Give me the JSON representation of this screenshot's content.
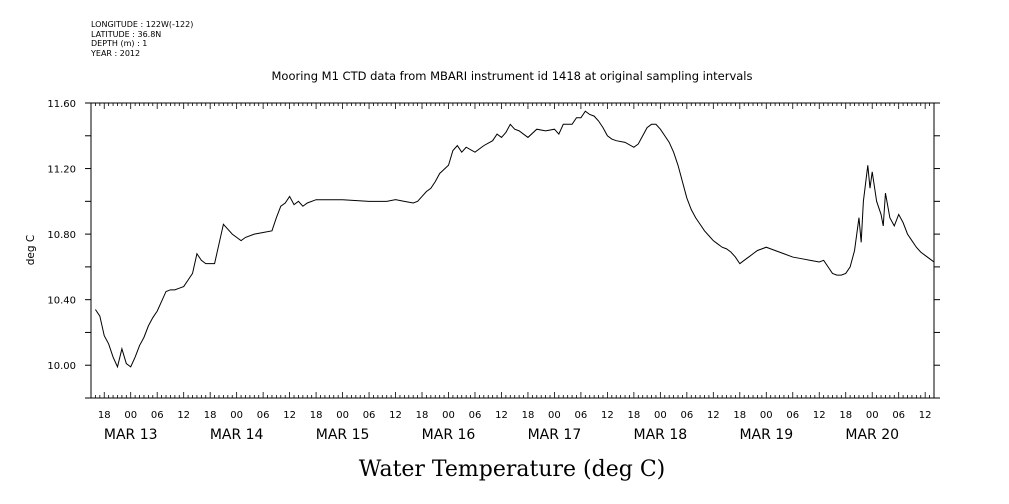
{
  "metadata": {
    "longitude": "LONGITUDE : 122W(-122)",
    "latitude": "LATITUDE : 36.8N",
    "depth": "DEPTH (m) : 1",
    "year": "YEAR : 2012"
  },
  "chart_data": {
    "type": "line",
    "title": "Mooring M1 CTD data from MBARI instrument id 1418 at original sampling intervals",
    "xlabel": "Water Temperature (deg C)",
    "ylabel": "deg C",
    "ylim": [
      9.8,
      11.6
    ],
    "xlim": [
      "2012-03-12 15:00",
      "2012-03-20 14:00"
    ],
    "yticks": [
      "10.00",
      "10.40",
      "10.80",
      "11.20",
      "11.60"
    ],
    "hour_tick_labels": [
      "18",
      "00",
      "06",
      "12",
      "18",
      "00",
      "06",
      "12",
      "18",
      "00",
      "06",
      "12",
      "18",
      "00",
      "06",
      "12",
      "18",
      "00",
      "06",
      "12",
      "18",
      "00",
      "06",
      "12",
      "18",
      "00",
      "06",
      "12",
      "18",
      "00",
      "06",
      "12"
    ],
    "date_labels": [
      "MAR 13",
      "MAR 14",
      "MAR 15",
      "MAR 16",
      "MAR 17",
      "MAR 18",
      "MAR 19",
      "MAR 20"
    ],
    "grid": false,
    "legend": "none",
    "line_color": "#000000",
    "series": [
      {
        "values": [
          [
            "2012-03-12 16:00",
            10.34
          ],
          [
            "2012-03-12 17:00",
            10.3
          ],
          [
            "2012-03-12 18:00",
            10.18
          ],
          [
            "2012-03-12 19:00",
            10.13
          ],
          [
            "2012-03-12 20:00",
            10.05
          ],
          [
            "2012-03-12 21:00",
            9.99
          ],
          [
            "2012-03-12 22:00",
            10.1
          ],
          [
            "2012-03-12 23:00",
            10.01
          ],
          [
            "2012-03-13 00:00",
            9.99
          ],
          [
            "2012-03-13 01:00",
            10.05
          ],
          [
            "2012-03-13 02:00",
            10.12
          ],
          [
            "2012-03-13 03:00",
            10.17
          ],
          [
            "2012-03-13 04:00",
            10.24
          ],
          [
            "2012-03-13 05:00",
            10.29
          ],
          [
            "2012-03-13 06:00",
            10.33
          ],
          [
            "2012-03-13 07:00",
            10.39
          ],
          [
            "2012-03-13 08:00",
            10.45
          ],
          [
            "2012-03-13 09:00",
            10.46
          ],
          [
            "2012-03-13 10:00",
            10.46
          ],
          [
            "2012-03-13 11:00",
            10.47
          ],
          [
            "2012-03-13 12:00",
            10.48
          ],
          [
            "2012-03-13 13:00",
            10.52
          ],
          [
            "2012-03-13 14:00",
            10.56
          ],
          [
            "2012-03-13 15:00",
            10.68
          ],
          [
            "2012-03-13 16:00",
            10.64
          ],
          [
            "2012-03-13 17:00",
            10.62
          ],
          [
            "2012-03-13 18:00",
            10.62
          ],
          [
            "2012-03-13 19:00",
            10.62
          ],
          [
            "2012-03-13 20:00",
            10.74
          ],
          [
            "2012-03-13 21:00",
            10.86
          ],
          [
            "2012-03-13 22:00",
            10.83
          ],
          [
            "2012-03-13 23:00",
            10.8
          ],
          [
            "2012-03-14 00:00",
            10.78
          ],
          [
            "2012-03-14 01:00",
            10.76
          ],
          [
            "2012-03-14 02:00",
            10.78
          ],
          [
            "2012-03-14 04:00",
            10.8
          ],
          [
            "2012-03-14 06:00",
            10.81
          ],
          [
            "2012-03-14 08:00",
            10.82
          ],
          [
            "2012-03-14 09:00",
            10.9
          ],
          [
            "2012-03-14 10:00",
            10.97
          ],
          [
            "2012-03-14 11:00",
            10.99
          ],
          [
            "2012-03-14 12:00",
            11.03
          ],
          [
            "2012-03-14 13:00",
            10.98
          ],
          [
            "2012-03-14 14:00",
            11.0
          ],
          [
            "2012-03-14 15:00",
            10.97
          ],
          [
            "2012-03-14 16:00",
            10.99
          ],
          [
            "2012-03-14 18:00",
            11.01
          ],
          [
            "2012-03-14 20:00",
            11.01
          ],
          [
            "2012-03-15 00:00",
            11.01
          ],
          [
            "2012-03-15 06:00",
            11.0
          ],
          [
            "2012-03-15 10:00",
            11.0
          ],
          [
            "2012-03-15 12:00",
            11.01
          ],
          [
            "2012-03-15 14:00",
            11.0
          ],
          [
            "2012-03-15 16:00",
            10.99
          ],
          [
            "2012-03-15 17:00",
            11.0
          ],
          [
            "2012-03-15 18:00",
            11.03
          ],
          [
            "2012-03-15 19:00",
            11.06
          ],
          [
            "2012-03-15 20:00",
            11.08
          ],
          [
            "2012-03-15 21:00",
            11.12
          ],
          [
            "2012-03-15 22:00",
            11.17
          ],
          [
            "2012-03-16 00:00",
            11.22
          ],
          [
            "2012-03-16 01:00",
            11.31
          ],
          [
            "2012-03-16 02:00",
            11.34
          ],
          [
            "2012-03-16 03:00",
            11.3
          ],
          [
            "2012-03-16 04:00",
            11.33
          ],
          [
            "2012-03-16 06:00",
            11.3
          ],
          [
            "2012-03-16 08:00",
            11.34
          ],
          [
            "2012-03-16 10:00",
            11.37
          ],
          [
            "2012-03-16 11:00",
            11.41
          ],
          [
            "2012-03-16 12:00",
            11.39
          ],
          [
            "2012-03-16 13:00",
            11.42
          ],
          [
            "2012-03-16 14:00",
            11.47
          ],
          [
            "2012-03-16 15:00",
            11.44
          ],
          [
            "2012-03-16 16:00",
            11.43
          ],
          [
            "2012-03-16 18:00",
            11.39
          ],
          [
            "2012-03-16 20:00",
            11.44
          ],
          [
            "2012-03-16 22:00",
            11.43
          ],
          [
            "2012-03-17 00:00",
            11.44
          ],
          [
            "2012-03-17 01:00",
            11.41
          ],
          [
            "2012-03-17 02:00",
            11.47
          ],
          [
            "2012-03-17 04:00",
            11.47
          ],
          [
            "2012-03-17 05:00",
            11.51
          ],
          [
            "2012-03-17 06:00",
            11.51
          ],
          [
            "2012-03-17 07:00",
            11.55
          ],
          [
            "2012-03-17 08:00",
            11.53
          ],
          [
            "2012-03-17 09:00",
            11.52
          ],
          [
            "2012-03-17 10:00",
            11.49
          ],
          [
            "2012-03-17 11:00",
            11.45
          ],
          [
            "2012-03-17 12:00",
            11.4
          ],
          [
            "2012-03-17 13:00",
            11.38
          ],
          [
            "2012-03-17 14:00",
            11.37
          ],
          [
            "2012-03-17 16:00",
            11.36
          ],
          [
            "2012-03-17 18:00",
            11.33
          ],
          [
            "2012-03-17 19:00",
            11.35
          ],
          [
            "2012-03-17 20:00",
            11.4
          ],
          [
            "2012-03-17 21:00",
            11.45
          ],
          [
            "2012-03-17 22:00",
            11.47
          ],
          [
            "2012-03-17 23:00",
            11.47
          ],
          [
            "2012-03-18 00:00",
            11.44
          ],
          [
            "2012-03-18 01:00",
            11.4
          ],
          [
            "2012-03-18 02:00",
            11.36
          ],
          [
            "2012-03-18 03:00",
            11.3
          ],
          [
            "2012-03-18 04:00",
            11.22
          ],
          [
            "2012-03-18 05:00",
            11.12
          ],
          [
            "2012-03-18 06:00",
            11.02
          ],
          [
            "2012-03-18 07:00",
            10.95
          ],
          [
            "2012-03-18 08:00",
            10.9
          ],
          [
            "2012-03-18 09:00",
            10.86
          ],
          [
            "2012-03-18 10:00",
            10.82
          ],
          [
            "2012-03-18 11:00",
            10.79
          ],
          [
            "2012-03-18 12:00",
            10.76
          ],
          [
            "2012-03-18 13:00",
            10.74
          ],
          [
            "2012-03-18 14:00",
            10.72
          ],
          [
            "2012-03-18 15:00",
            10.71
          ],
          [
            "2012-03-18 16:00",
            10.69
          ],
          [
            "2012-03-18 17:00",
            10.66
          ],
          [
            "2012-03-18 18:00",
            10.62
          ],
          [
            "2012-03-18 19:00",
            10.64
          ],
          [
            "2012-03-18 20:00",
            10.66
          ],
          [
            "2012-03-18 21:00",
            10.68
          ],
          [
            "2012-03-18 22:00",
            10.7
          ],
          [
            "2012-03-18 23:00",
            10.71
          ],
          [
            "2012-03-19 00:00",
            10.72
          ],
          [
            "2012-03-19 01:00",
            10.71
          ],
          [
            "2012-03-19 02:00",
            10.7
          ],
          [
            "2012-03-19 04:00",
            10.68
          ],
          [
            "2012-03-19 06:00",
            10.66
          ],
          [
            "2012-03-19 08:00",
            10.65
          ],
          [
            "2012-03-19 10:00",
            10.64
          ],
          [
            "2012-03-19 12:00",
            10.63
          ],
          [
            "2012-03-19 13:00",
            10.64
          ],
          [
            "2012-03-19 14:00",
            10.6
          ],
          [
            "2012-03-19 15:00",
            10.56
          ],
          [
            "2012-03-19 16:00",
            10.55
          ],
          [
            "2012-03-19 17:00",
            10.55
          ],
          [
            "2012-03-19 18:00",
            10.56
          ],
          [
            "2012-03-19 19:00",
            10.6
          ],
          [
            "2012-03-19 20:00",
            10.7
          ],
          [
            "2012-03-19 21:00",
            10.9
          ],
          [
            "2012-03-19 21:30",
            10.75
          ],
          [
            "2012-03-19 22:00",
            11.0
          ],
          [
            "2012-03-19 23:00",
            11.22
          ],
          [
            "2012-03-19 23:30",
            11.08
          ],
          [
            "2012-03-20 00:00",
            11.18
          ],
          [
            "2012-03-20 01:00",
            11.0
          ],
          [
            "2012-03-20 02:00",
            10.92
          ],
          [
            "2012-03-20 02:30",
            10.85
          ],
          [
            "2012-03-20 03:00",
            11.05
          ],
          [
            "2012-03-20 04:00",
            10.9
          ],
          [
            "2012-03-20 05:00",
            10.85
          ],
          [
            "2012-03-20 06:00",
            10.92
          ],
          [
            "2012-03-20 07:00",
            10.87
          ],
          [
            "2012-03-20 08:00",
            10.8
          ],
          [
            "2012-03-20 09:00",
            10.76
          ],
          [
            "2012-03-20 10:00",
            10.72
          ],
          [
            "2012-03-20 11:00",
            10.69
          ],
          [
            "2012-03-20 12:00",
            10.67
          ],
          [
            "2012-03-20 13:00",
            10.65
          ],
          [
            "2012-03-20 14:00",
            10.63
          ]
        ]
      }
    ]
  }
}
